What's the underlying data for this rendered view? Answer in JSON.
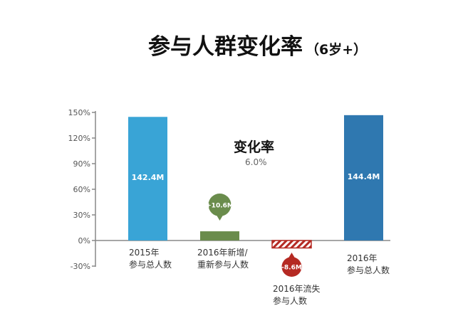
{
  "title": {
    "main": "参与人群变化率",
    "suffix": "（6岁+）"
  },
  "change_rate": {
    "label": "变化率",
    "value": "6.0%"
  },
  "chart_data": {
    "type": "bar",
    "subtype": "waterfall",
    "yticks": [
      "150%",
      "120%",
      "90%",
      "60%",
      "30%",
      "0%",
      "-30%"
    ],
    "ytick_values": [
      150,
      120,
      90,
      60,
      30,
      0,
      -30
    ],
    "ylim": [
      -30,
      150
    ],
    "categories": [
      {
        "line1": "2015年",
        "line2": "参与总人数"
      },
      {
        "line1": "2016年新增/",
        "line2": "重新参与人数"
      },
      {
        "line1": "2016年流失",
        "line2": "参与人数"
      },
      {
        "line1": "2016年",
        "line2": "参与总人数"
      }
    ],
    "values": [
      142.4,
      10.6,
      -8.6,
      144.4
    ],
    "value_unit": "M",
    "data_labels": [
      "142.4M",
      "+10.6M",
      "-8.6M",
      "144.4M"
    ],
    "colors": [
      "#39a4d6",
      "#6a8c4c",
      "#b52a23",
      "#2f78b0"
    ]
  }
}
